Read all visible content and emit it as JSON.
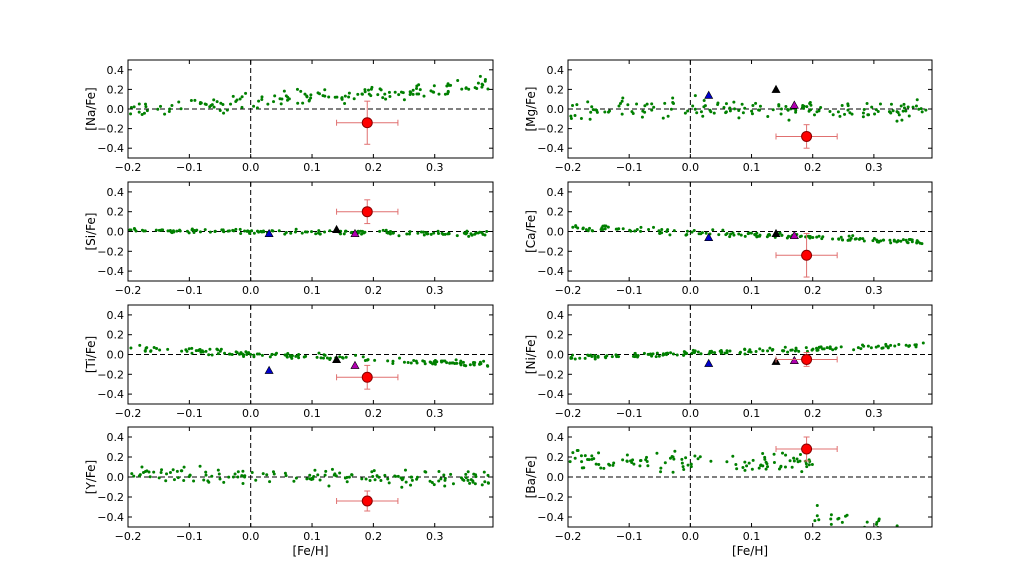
{
  "figure": {
    "xlabel": "[Fe/H]",
    "xlim": [
      -0.2,
      0.395
    ],
    "ylim": [
      -0.5,
      0.5
    ],
    "xticks": [
      -0.2,
      -0.1,
      0.0,
      0.1,
      0.2,
      0.3
    ],
    "xtick_labels": [
      "−0.2",
      "−0.1",
      "0.0",
      "0.1",
      "0.2",
      "0.3"
    ],
    "yticks": [
      -0.4,
      -0.2,
      0.0,
      0.2,
      0.4
    ],
    "ytick_labels": [
      "−0.4",
      "−0.2",
      "0.0",
      "0.2",
      "0.4"
    ],
    "colors": {
      "field_stars": "#008000",
      "target": "#ff0000",
      "target_edge": "#8b0000",
      "errorbar": "#e07070",
      "blue_star": "#0000cc",
      "black_star": "#000000",
      "magenta_star": "#b000b0"
    }
  },
  "chart_data": [
    {
      "id": "na",
      "type": "scatter",
      "ylabel": "[Na/Fe]",
      "trend": "rising",
      "field_base": -0.02,
      "field_slope": 0.27,
      "field_scatter": 0.04,
      "target": {
        "x": 0.19,
        "y": -0.14,
        "xerr": 0.05,
        "yerr": 0.22
      },
      "triangles": []
    },
    {
      "id": "mg",
      "type": "scatter",
      "ylabel": "[Mg/Fe]",
      "trend": "flat",
      "field_base": 0.01,
      "field_slope": -0.02,
      "field_scatter": 0.05,
      "target": {
        "x": 0.19,
        "y": -0.28,
        "xerr": 0.05,
        "yerr": 0.12
      },
      "triangles": [
        {
          "x": 0.03,
          "y": 0.14,
          "color": "blue"
        },
        {
          "x": 0.14,
          "y": 0.2,
          "color": "black"
        },
        {
          "x": 0.17,
          "y": 0.04,
          "color": "magenta"
        }
      ]
    },
    {
      "id": "si",
      "type": "scatter",
      "ylabel": "[Si/Fe]",
      "trend": "flat",
      "field_base": 0.01,
      "field_slope": -0.03,
      "field_scatter": 0.012,
      "target": {
        "x": 0.19,
        "y": 0.2,
        "xerr": 0.05,
        "yerr": 0.12
      },
      "triangles": [
        {
          "x": 0.03,
          "y": -0.02,
          "color": "blue"
        },
        {
          "x": 0.14,
          "y": 0.02,
          "color": "black"
        },
        {
          "x": 0.17,
          "y": -0.02,
          "color": "magenta"
        }
      ]
    },
    {
      "id": "ca",
      "type": "scatter",
      "ylabel": "[Ca/Fe]",
      "trend": "falling",
      "field_base": 0.04,
      "field_slope": -0.15,
      "field_scatter": 0.015,
      "target": {
        "x": 0.19,
        "y": -0.24,
        "xerr": 0.05,
        "yerr": 0.22
      },
      "triangles": [
        {
          "x": 0.03,
          "y": -0.06,
          "color": "blue"
        },
        {
          "x": 0.14,
          "y": -0.02,
          "color": "black"
        },
        {
          "x": 0.17,
          "y": -0.04,
          "color": "magenta"
        }
      ]
    },
    {
      "id": "ti",
      "type": "scatter",
      "ylabel": "[Ti/Fe]",
      "trend": "falling",
      "field_base": 0.06,
      "field_slope": -0.16,
      "field_scatter": 0.015,
      "target": {
        "x": 0.19,
        "y": -0.23,
        "xerr": 0.05,
        "yerr": 0.12
      },
      "triangles": [
        {
          "x": 0.03,
          "y": -0.16,
          "color": "blue"
        },
        {
          "x": 0.14,
          "y": -0.05,
          "color": "black"
        },
        {
          "x": 0.17,
          "y": -0.11,
          "color": "magenta"
        }
      ]
    },
    {
      "id": "ni",
      "type": "scatter",
      "ylabel": "[Ni/Fe]",
      "trend": "rising",
      "field_base": -0.03,
      "field_slope": 0.13,
      "field_scatter": 0.012,
      "target": {
        "x": 0.19,
        "y": -0.05,
        "xerr": 0.05,
        "yerr": 0.07
      },
      "triangles": [
        {
          "x": 0.03,
          "y": -0.09,
          "color": "blue"
        },
        {
          "x": 0.14,
          "y": -0.07,
          "color": "black"
        },
        {
          "x": 0.17,
          "y": -0.06,
          "color": "magenta"
        }
      ]
    },
    {
      "id": "y",
      "type": "scatter",
      "ylabel": "[Y/Fe]",
      "trend": "flat",
      "field_base": 0.03,
      "field_slope": -0.05,
      "field_scatter": 0.045,
      "target": {
        "x": 0.19,
        "y": -0.24,
        "xerr": 0.05,
        "yerr": 0.1
      },
      "triangles": []
    },
    {
      "id": "ba",
      "type": "scatter",
      "ylabel": "[Ba/Fe]",
      "trend": "falling",
      "field_base": 0.15,
      "field_slope": -0.8,
      "field_scatter": 0.06,
      "target": {
        "x": 0.19,
        "y": 0.28,
        "xerr": 0.05,
        "yerr": 0.12
      },
      "triangles": []
    }
  ]
}
